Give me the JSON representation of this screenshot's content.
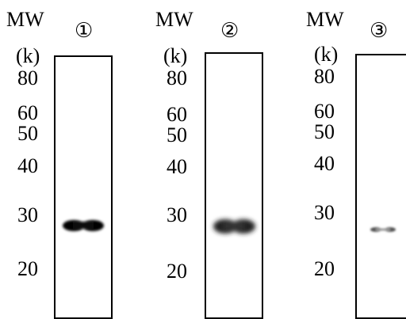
{
  "panels": [
    {
      "number": "①",
      "mw_label": "MW",
      "unit_label": "(k)",
      "markers": [
        "80",
        "60",
        "50",
        "40",
        "30",
        "20"
      ],
      "band": {
        "kda": 28,
        "intensity": "strong"
      }
    },
    {
      "number": "②",
      "mw_label": "MW",
      "unit_label": "(k)",
      "markers": [
        "80",
        "60",
        "50",
        "40",
        "30",
        "20"
      ],
      "band": {
        "kda": 28,
        "intensity": "medium-diffuse"
      }
    },
    {
      "number": "③",
      "mw_label": "MW",
      "unit_label": "(k)",
      "markers": [
        "80",
        "60",
        "50",
        "40",
        "30",
        "20"
      ],
      "band": {
        "kda": 28,
        "intensity": "weak"
      }
    }
  ]
}
